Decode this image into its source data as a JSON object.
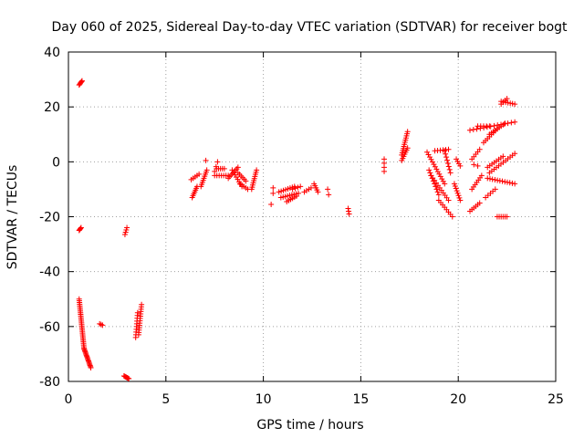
{
  "chart_data": {
    "type": "scatter",
    "title": "Day 060 of 2025, Sidereal Day-to-day VTEC variation (SDTVAR) for receiver bogt",
    "xlabel": "GPS time / hours",
    "ylabel": "SDTVAR / TECUs",
    "xlim": [
      0,
      25
    ],
    "ylim": [
      -80,
      40
    ],
    "xticks": [
      "0",
      "5",
      "10",
      "15",
      "20",
      "25"
    ],
    "yticks": [
      "-80",
      "-60",
      "-40",
      "-20",
      "0",
      "20",
      "40"
    ],
    "grid": true,
    "marker": "plus",
    "color": "#ff0000",
    "series": [
      {
        "name": "SDTVAR",
        "segments": [
          {
            "x0": 0.55,
            "y0": 28.0,
            "x1": 0.7,
            "y1": 29.5,
            "n": 6
          },
          {
            "x0": 0.55,
            "y0": -25.0,
            "x1": 0.65,
            "y1": -24.0,
            "n": 4
          },
          {
            "x0": 0.55,
            "y0": -50.0,
            "x1": 0.8,
            "y1": -68.0,
            "n": 30
          },
          {
            "x0": 0.8,
            "y0": -68.0,
            "x1": 1.15,
            "y1": -75.0,
            "n": 18
          },
          {
            "x0": 1.6,
            "y0": -59.0,
            "x1": 1.75,
            "y1": -59.5,
            "n": 3
          },
          {
            "x0": 2.9,
            "y0": -26.5,
            "x1": 3.0,
            "y1": -24.0,
            "n": 4
          },
          {
            "x0": 2.85,
            "y0": -78.0,
            "x1": 3.1,
            "y1": -79.0,
            "n": 7
          },
          {
            "x0": 3.45,
            "y0": -64.0,
            "x1": 3.55,
            "y1": -55.0,
            "n": 10
          },
          {
            "x0": 3.6,
            "y0": -63.0,
            "x1": 3.75,
            "y1": -52.0,
            "n": 14
          },
          {
            "x0": 6.35,
            "y0": -13.0,
            "x1": 6.6,
            "y1": -9.0,
            "n": 7
          },
          {
            "x0": 6.3,
            "y0": -6.5,
            "x1": 6.7,
            "y1": -4.5,
            "n": 5
          },
          {
            "x0": 6.8,
            "y0": -9.0,
            "x1": 7.1,
            "y1": -3.0,
            "n": 9
          },
          {
            "x0": 7.05,
            "y0": 0.5,
            "x1": 7.1,
            "y1": 0.5,
            "n": 1
          },
          {
            "x0": 7.5,
            "y0": -3.5,
            "x1": 7.65,
            "y1": 0.0,
            "n": 3
          },
          {
            "x0": 7.5,
            "y0": -5.0,
            "x1": 8.2,
            "y1": -5.0,
            "n": 7
          },
          {
            "x0": 7.6,
            "y0": -2.5,
            "x1": 8.0,
            "y1": -2.5,
            "n": 5
          },
          {
            "x0": 8.2,
            "y0": -6.0,
            "x1": 8.7,
            "y1": -2.0,
            "n": 8
          },
          {
            "x0": 8.4,
            "y0": -3.0,
            "x1": 8.9,
            "y1": -9.0,
            "n": 8
          },
          {
            "x0": 8.7,
            "y0": -4.0,
            "x1": 9.1,
            "y1": -7.0,
            "n": 6
          },
          {
            "x0": 8.8,
            "y0": -8.0,
            "x1": 9.2,
            "y1": -10.0,
            "n": 5
          },
          {
            "x0": 9.4,
            "y0": -10.0,
            "x1": 9.65,
            "y1": -3.0,
            "n": 10
          },
          {
            "x0": 10.5,
            "y0": -9.5,
            "x1": 10.5,
            "y1": -11.5,
            "n": 2
          },
          {
            "x0": 10.4,
            "y0": -15.5,
            "x1": 10.5,
            "y1": -15.5,
            "n": 1
          },
          {
            "x0": 10.8,
            "y0": -11.0,
            "x1": 11.6,
            "y1": -9.0,
            "n": 8
          },
          {
            "x0": 10.9,
            "y0": -13.0,
            "x1": 11.8,
            "y1": -11.5,
            "n": 9
          },
          {
            "x0": 11.2,
            "y0": -14.5,
            "x1": 11.7,
            "y1": -12.5,
            "n": 6
          },
          {
            "x0": 11.5,
            "y0": -10.0,
            "x1": 11.9,
            "y1": -9.0,
            "n": 4
          },
          {
            "x0": 12.1,
            "y0": -11.0,
            "x1": 12.45,
            "y1": -9.5,
            "n": 4
          },
          {
            "x0": 12.6,
            "y0": -8.0,
            "x1": 12.8,
            "y1": -11.0,
            "n": 5
          },
          {
            "x0": 13.3,
            "y0": -10.0,
            "x1": 13.35,
            "y1": -12.0,
            "n": 2
          },
          {
            "x0": 14.35,
            "y0": -17.0,
            "x1": 14.4,
            "y1": -19.0,
            "n": 3
          },
          {
            "x0": 16.2,
            "y0": 1.0,
            "x1": 16.2,
            "y1": -3.5,
            "n": 4
          },
          {
            "x0": 17.1,
            "y0": 2.5,
            "x1": 17.4,
            "y1": 11.0,
            "n": 12
          },
          {
            "x0": 17.1,
            "y0": 0.5,
            "x1": 17.4,
            "y1": 5.0,
            "n": 7
          },
          {
            "x0": 18.4,
            "y0": 3.5,
            "x1": 19.3,
            "y1": -8.0,
            "n": 14
          },
          {
            "x0": 18.5,
            "y0": -3.0,
            "x1": 19.0,
            "y1": -12.0,
            "n": 10
          },
          {
            "x0": 18.6,
            "y0": -5.0,
            "x1": 19.5,
            "y1": -14.0,
            "n": 11
          },
          {
            "x0": 19.0,
            "y0": -14.0,
            "x1": 19.7,
            "y1": -20.0,
            "n": 8
          },
          {
            "x0": 18.8,
            "y0": 4.0,
            "x1": 19.5,
            "y1": 4.5,
            "n": 6
          },
          {
            "x0": 19.3,
            "y0": 4.0,
            "x1": 19.6,
            "y1": -4.0,
            "n": 8
          },
          {
            "x0": 19.9,
            "y0": 1.0,
            "x1": 20.1,
            "y1": -1.5,
            "n": 4
          },
          {
            "x0": 19.8,
            "y0": -8.0,
            "x1": 20.1,
            "y1": -14.0,
            "n": 8
          },
          {
            "x0": 20.6,
            "y0": -18.0,
            "x1": 21.1,
            "y1": -15.0,
            "n": 6
          },
          {
            "x0": 20.7,
            "y0": -10.0,
            "x1": 21.2,
            "y1": -5.0,
            "n": 7
          },
          {
            "x0": 20.7,
            "y0": 1.0,
            "x1": 21.1,
            "y1": 4.5,
            "n": 5
          },
          {
            "x0": 20.8,
            "y0": -1.0,
            "x1": 21.0,
            "y1": -1.5,
            "n": 2
          },
          {
            "x0": 20.6,
            "y0": 11.5,
            "x1": 22.9,
            "y1": 14.5,
            "n": 14
          },
          {
            "x0": 21.0,
            "y0": 13.0,
            "x1": 21.6,
            "y1": 13.0,
            "n": 5
          },
          {
            "x0": 21.3,
            "y0": 7.0,
            "x1": 22.0,
            "y1": 12.0,
            "n": 8
          },
          {
            "x0": 21.6,
            "y0": 10.0,
            "x1": 22.4,
            "y1": 14.0,
            "n": 9
          },
          {
            "x0": 21.5,
            "y0": -2.0,
            "x1": 22.3,
            "y1": 2.0,
            "n": 8
          },
          {
            "x0": 21.6,
            "y0": -4.0,
            "x1": 22.9,
            "y1": 3.0,
            "n": 12
          },
          {
            "x0": 21.4,
            "y0": -13.0,
            "x1": 21.9,
            "y1": -10.0,
            "n": 5
          },
          {
            "x0": 21.5,
            "y0": -6.0,
            "x1": 22.9,
            "y1": -8.0,
            "n": 12
          },
          {
            "x0": 22.0,
            "y0": -20.0,
            "x1": 22.5,
            "y1": -20.0,
            "n": 6
          },
          {
            "x0": 22.2,
            "y0": 22.0,
            "x1": 22.9,
            "y1": 21.0,
            "n": 7
          },
          {
            "x0": 22.2,
            "y0": 21.0,
            "x1": 22.5,
            "y1": 23.0,
            "n": 4
          }
        ]
      }
    ]
  }
}
